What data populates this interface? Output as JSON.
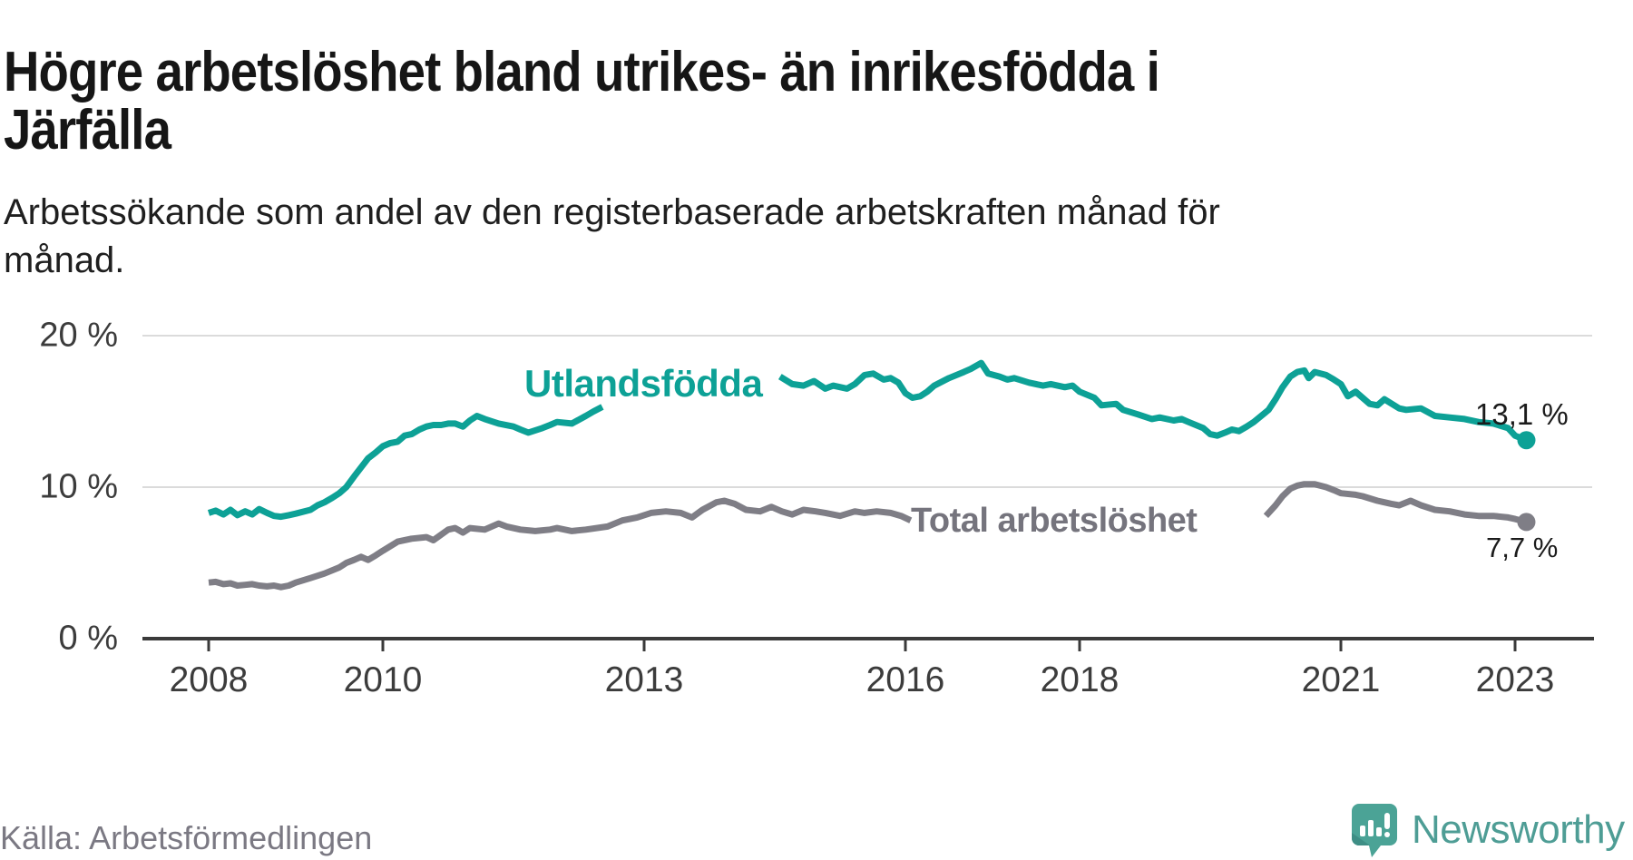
{
  "header": {
    "title": "Högre arbetslöshet bland utrikes- än inrikesfödda i Järfälla",
    "subtitle": "Arbetssökande som andel av den registerbaserade arbetskraften månad för månad."
  },
  "footer": {
    "source": "Källa: Arbetsförmedlingen",
    "brand": "Newsworthy"
  },
  "colors": {
    "series_foreign_born": "#0da196",
    "series_total": "#7f7e86",
    "series_total_label": "#75747d",
    "grid": "#dbdbdb",
    "axis": "#3a3a3a",
    "logo_teal": "#4ba396",
    "logo_teal_dark": "#3e8e85"
  },
  "chart_data": {
    "type": "line",
    "title": "Högre arbetslöshet bland utrikes- än inrikesfödda i Järfälla",
    "subtitle": "Arbetssökande som andel av den registerbaserade arbetskraften månad för månad.",
    "xlabel": "",
    "ylabel": "",
    "grid": "horizontal",
    "legend_position": "inline-labels",
    "x_axis": {
      "range": [
        2007.25,
        2023.9
      ],
      "ticks": [
        {
          "year": 2008,
          "label": "2008"
        },
        {
          "year": 2010,
          "label": "2010"
        },
        {
          "year": 2013,
          "label": "2013"
        },
        {
          "year": 2016,
          "label": "2016"
        },
        {
          "year": 2018,
          "label": "2018"
        },
        {
          "year": 2021,
          "label": "2021"
        },
        {
          "year": 2023,
          "label": "2023"
        }
      ]
    },
    "y_axis": {
      "range": [
        0,
        21
      ],
      "unit": "%",
      "ticks": [
        {
          "value": 0,
          "label": "0 %"
        },
        {
          "value": 10,
          "label": "10 %"
        },
        {
          "value": 20,
          "label": "20 %"
        }
      ]
    },
    "series": [
      {
        "name": "Utlandsfödda",
        "color": "#0da196",
        "end_value": 13.1,
        "end_label": "13,1 %",
        "segments": [
          [
            [
              2008.0,
              8.3
            ],
            [
              2008.08,
              8.45
            ],
            [
              2008.17,
              8.2
            ],
            [
              2008.25,
              8.5
            ],
            [
              2008.33,
              8.15
            ],
            [
              2008.42,
              8.4
            ],
            [
              2008.5,
              8.2
            ],
            [
              2008.58,
              8.55
            ],
            [
              2008.67,
              8.3
            ],
            [
              2008.75,
              8.1
            ],
            [
              2008.83,
              8.05
            ],
            [
              2008.92,
              8.15
            ],
            [
              2009.0,
              8.25
            ],
            [
              2009.17,
              8.5
            ],
            [
              2009.25,
              8.8
            ],
            [
              2009.33,
              9.0
            ],
            [
              2009.42,
              9.3
            ],
            [
              2009.5,
              9.6
            ],
            [
              2009.58,
              10.0
            ],
            [
              2009.67,
              10.7
            ],
            [
              2009.75,
              11.3
            ],
            [
              2009.83,
              11.9
            ],
            [
              2009.92,
              12.3
            ],
            [
              2010.0,
              12.7
            ],
            [
              2010.08,
              12.9
            ],
            [
              2010.17,
              13.0
            ],
            [
              2010.25,
              13.4
            ],
            [
              2010.33,
              13.5
            ],
            [
              2010.42,
              13.8
            ],
            [
              2010.5,
              14.0
            ],
            [
              2010.58,
              14.1
            ],
            [
              2010.67,
              14.1
            ],
            [
              2010.75,
              14.2
            ],
            [
              2010.83,
              14.2
            ],
            [
              2010.92,
              14.0
            ],
            [
              2011.0,
              14.4
            ],
            [
              2011.08,
              14.7
            ],
            [
              2011.17,
              14.5
            ],
            [
              2011.33,
              14.2
            ],
            [
              2011.5,
              14.0
            ],
            [
              2011.58,
              13.8
            ],
            [
              2011.67,
              13.6
            ],
            [
              2011.83,
              13.9
            ],
            [
              2011.92,
              14.1
            ],
            [
              2012.0,
              14.3
            ],
            [
              2012.17,
              14.2
            ],
            [
              2012.33,
              14.7
            ],
            [
              2012.42,
              15.0
            ],
            [
              2012.52,
              15.3
            ]
          ],
          [
            [
              2014.56,
              17.3
            ],
            [
              2014.7,
              16.8
            ],
            [
              2014.83,
              16.7
            ],
            [
              2014.95,
              17.0
            ],
            [
              2015.08,
              16.5
            ],
            [
              2015.17,
              16.7
            ],
            [
              2015.33,
              16.5
            ],
            [
              2015.42,
              16.8
            ],
            [
              2015.53,
              17.4
            ],
            [
              2015.63,
              17.5
            ],
            [
              2015.75,
              17.1
            ],
            [
              2015.83,
              17.2
            ],
            [
              2015.92,
              16.9
            ],
            [
              2016.0,
              16.2
            ],
            [
              2016.08,
              15.9
            ],
            [
              2016.17,
              16.0
            ],
            [
              2016.25,
              16.3
            ],
            [
              2016.33,
              16.7
            ],
            [
              2016.5,
              17.2
            ],
            [
              2016.67,
              17.6
            ],
            [
              2016.75,
              17.8
            ],
            [
              2016.87,
              18.2
            ],
            [
              2016.95,
              17.5
            ],
            [
              2017.08,
              17.3
            ],
            [
              2017.17,
              17.1
            ],
            [
              2017.25,
              17.2
            ],
            [
              2017.42,
              16.9
            ],
            [
              2017.58,
              16.7
            ],
            [
              2017.67,
              16.8
            ],
            [
              2017.83,
              16.6
            ],
            [
              2017.92,
              16.7
            ],
            [
              2018.0,
              16.3
            ],
            [
              2018.17,
              15.9
            ],
            [
              2018.25,
              15.4
            ],
            [
              2018.42,
              15.5
            ],
            [
              2018.5,
              15.1
            ],
            [
              2018.67,
              14.8
            ],
            [
              2018.83,
              14.5
            ],
            [
              2018.92,
              14.6
            ],
            [
              2019.08,
              14.4
            ],
            [
              2019.17,
              14.5
            ],
            [
              2019.25,
              14.3
            ],
            [
              2019.42,
              13.9
            ],
            [
              2019.5,
              13.5
            ],
            [
              2019.58,
              13.4
            ],
            [
              2019.67,
              13.6
            ],
            [
              2019.75,
              13.8
            ],
            [
              2019.83,
              13.7
            ],
            [
              2019.92,
              14.0
            ],
            [
              2020.0,
              14.3
            ],
            [
              2020.17,
              15.1
            ],
            [
              2020.25,
              15.8
            ],
            [
              2020.33,
              16.6
            ],
            [
              2020.42,
              17.3
            ],
            [
              2020.5,
              17.6
            ],
            [
              2020.58,
              17.7
            ],
            [
              2020.63,
              17.2
            ],
            [
              2020.7,
              17.6
            ],
            [
              2020.83,
              17.4
            ],
            [
              2020.92,
              17.1
            ],
            [
              2021.0,
              16.8
            ],
            [
              2021.08,
              16.0
            ],
            [
              2021.17,
              16.3
            ],
            [
              2021.33,
              15.5
            ],
            [
              2021.42,
              15.4
            ],
            [
              2021.5,
              15.8
            ],
            [
              2021.67,
              15.2
            ],
            [
              2021.75,
              15.1
            ],
            [
              2021.92,
              15.2
            ],
            [
              2022.08,
              14.7
            ],
            [
              2022.25,
              14.6
            ],
            [
              2022.42,
              14.5
            ],
            [
              2022.58,
              14.3
            ],
            [
              2022.75,
              14.2
            ],
            [
              2022.92,
              13.9
            ],
            [
              2023.0,
              13.4
            ],
            [
              2023.13,
              13.1
            ]
          ]
        ]
      },
      {
        "name": "Total arbetslöshet",
        "color": "#7f7e86",
        "end_value": 7.7,
        "end_label": "7,7 %",
        "segments": [
          [
            [
              2008.0,
              3.7
            ],
            [
              2008.08,
              3.75
            ],
            [
              2008.17,
              3.6
            ],
            [
              2008.25,
              3.65
            ],
            [
              2008.33,
              3.5
            ],
            [
              2008.42,
              3.55
            ],
            [
              2008.5,
              3.6
            ],
            [
              2008.58,
              3.5
            ],
            [
              2008.67,
              3.45
            ],
            [
              2008.75,
              3.5
            ],
            [
              2008.83,
              3.4
            ],
            [
              2008.92,
              3.5
            ],
            [
              2009.0,
              3.7
            ],
            [
              2009.17,
              4.0
            ],
            [
              2009.33,
              4.3
            ],
            [
              2009.5,
              4.7
            ],
            [
              2009.58,
              5.0
            ],
            [
              2009.67,
              5.2
            ],
            [
              2009.75,
              5.4
            ],
            [
              2009.83,
              5.2
            ],
            [
              2009.92,
              5.5
            ],
            [
              2010.0,
              5.8
            ],
            [
              2010.17,
              6.4
            ],
            [
              2010.33,
              6.6
            ],
            [
              2010.5,
              6.7
            ],
            [
              2010.58,
              6.5
            ],
            [
              2010.75,
              7.2
            ],
            [
              2010.83,
              7.3
            ],
            [
              2010.92,
              7.0
            ],
            [
              2011.0,
              7.3
            ],
            [
              2011.17,
              7.2
            ],
            [
              2011.33,
              7.6
            ],
            [
              2011.42,
              7.4
            ],
            [
              2011.58,
              7.2
            ],
            [
              2011.75,
              7.1
            ],
            [
              2011.92,
              7.2
            ],
            [
              2012.0,
              7.3
            ],
            [
              2012.17,
              7.1
            ],
            [
              2012.33,
              7.2
            ],
            [
              2012.58,
              7.4
            ],
            [
              2012.75,
              7.8
            ],
            [
              2012.92,
              8.0
            ],
            [
              2013.08,
              8.3
            ],
            [
              2013.25,
              8.4
            ],
            [
              2013.42,
              8.3
            ],
            [
              2013.55,
              8.0
            ],
            [
              2013.67,
              8.5
            ],
            [
              2013.83,
              9.0
            ],
            [
              2013.92,
              9.1
            ],
            [
              2014.04,
              8.9
            ],
            [
              2014.17,
              8.5
            ],
            [
              2014.33,
              8.4
            ],
            [
              2014.46,
              8.7
            ],
            [
              2014.58,
              8.4
            ],
            [
              2014.7,
              8.2
            ],
            [
              2014.83,
              8.5
            ],
            [
              2014.97,
              8.4
            ],
            [
              2015.08,
              8.3
            ],
            [
              2015.25,
              8.1
            ],
            [
              2015.42,
              8.4
            ],
            [
              2015.53,
              8.3
            ],
            [
              2015.67,
              8.4
            ],
            [
              2015.83,
              8.3
            ],
            [
              2015.95,
              8.1
            ],
            [
              2016.06,
              7.8
            ]
          ],
          [
            [
              2020.14,
              8.1
            ],
            [
              2020.25,
              8.8
            ],
            [
              2020.33,
              9.4
            ],
            [
              2020.42,
              9.9
            ],
            [
              2020.5,
              10.1
            ],
            [
              2020.58,
              10.2
            ],
            [
              2020.7,
              10.2
            ],
            [
              2020.83,
              10.0
            ],
            [
              2020.92,
              9.8
            ],
            [
              2021.0,
              9.6
            ],
            [
              2021.17,
              9.5
            ],
            [
              2021.25,
              9.4
            ],
            [
              2021.42,
              9.1
            ],
            [
              2021.58,
              8.9
            ],
            [
              2021.67,
              8.8
            ],
            [
              2021.8,
              9.1
            ],
            [
              2021.92,
              8.8
            ],
            [
              2022.08,
              8.5
            ],
            [
              2022.25,
              8.4
            ],
            [
              2022.42,
              8.2
            ],
            [
              2022.58,
              8.1
            ],
            [
              2022.75,
              8.1
            ],
            [
              2022.92,
              8.0
            ],
            [
              2023.0,
              7.9
            ],
            [
              2023.13,
              7.7
            ]
          ]
        ]
      }
    ]
  }
}
